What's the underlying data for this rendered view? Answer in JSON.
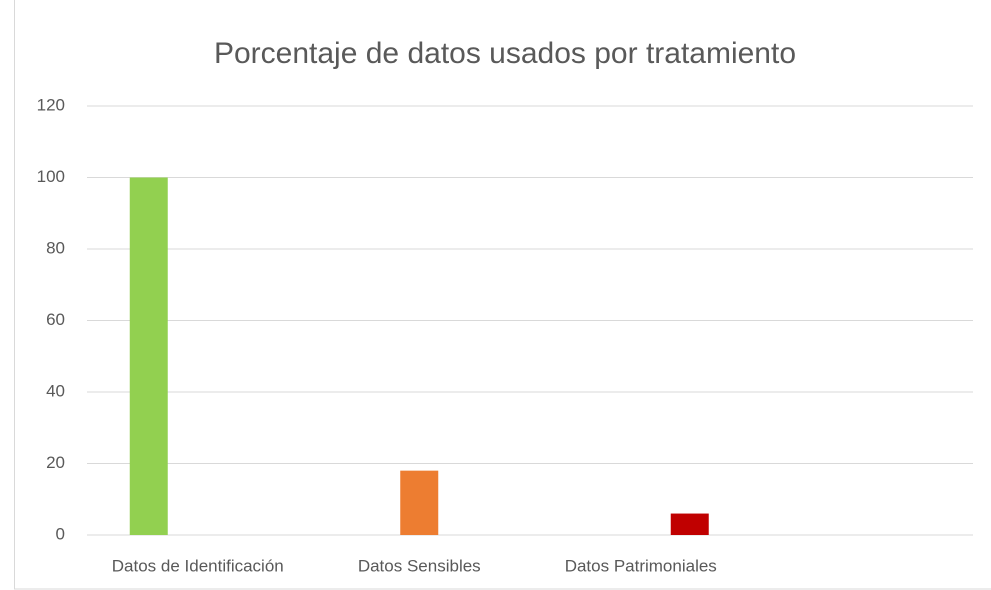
{
  "chart_data": {
    "type": "bar",
    "title": "Porcentaje de datos usados por tratamiento",
    "categories": [
      "Datos de Identificación",
      "Datos Sensibles",
      "Datos Patrimoniales",
      null
    ],
    "series": [
      {
        "color": "#92d050",
        "values": [
          100,
          null,
          null,
          null
        ]
      },
      {
        "color": "#ed7d31",
        "values": [
          null,
          18,
          null,
          null
        ]
      },
      {
        "color": "#c00000",
        "values": [
          null,
          null,
          6,
          null
        ]
      }
    ],
    "ylim": [
      0,
      120
    ],
    "yticks": [
      0,
      20,
      40,
      60,
      80,
      100,
      120
    ],
    "grid": true
  }
}
